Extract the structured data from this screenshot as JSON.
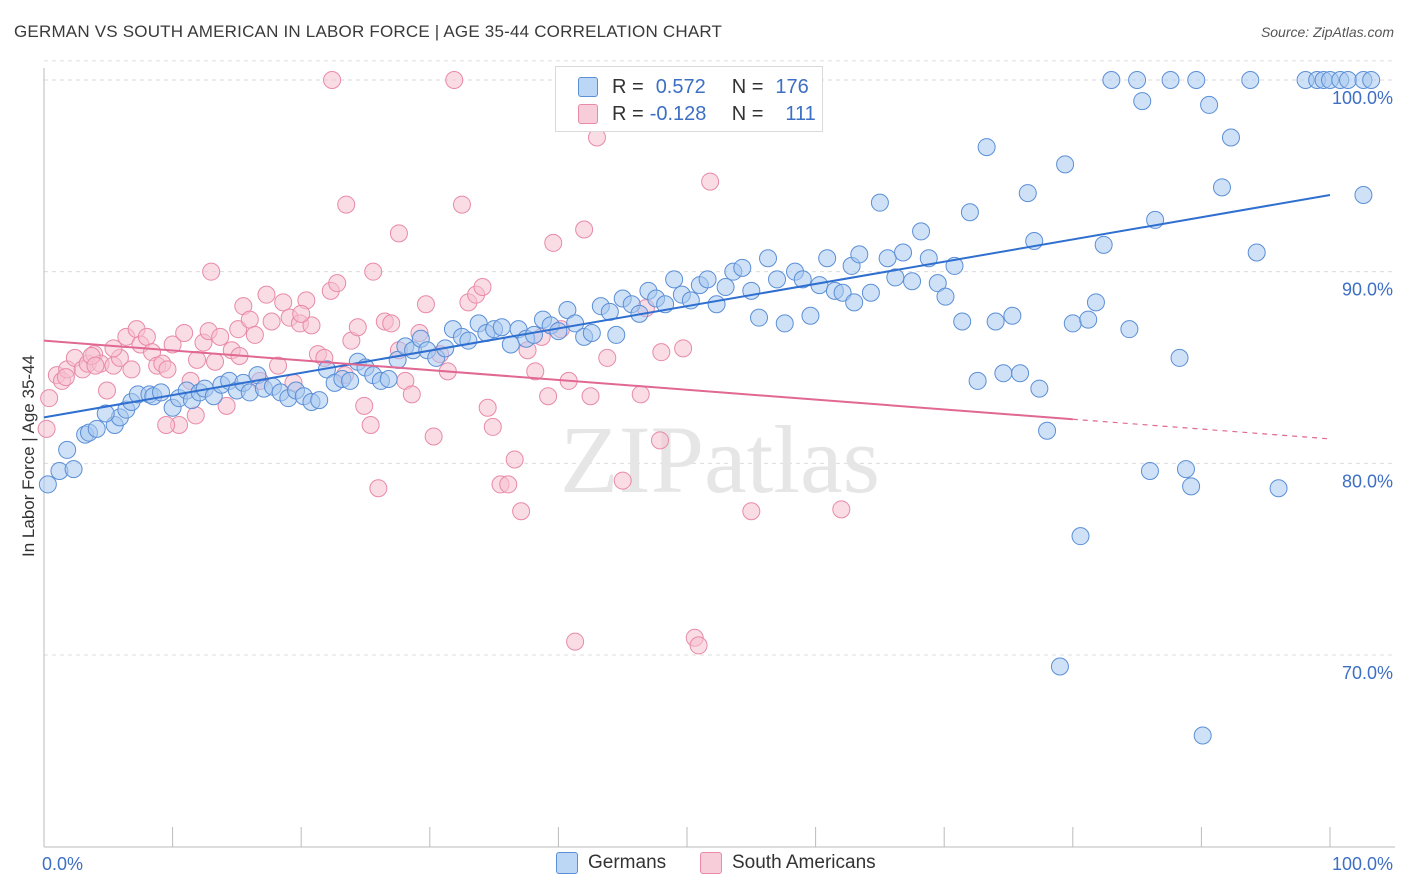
{
  "title": "GERMAN VS SOUTH AMERICAN IN LABOR FORCE | AGE 35-44 CORRELATION CHART",
  "source": "Source: ZipAtlas.com",
  "watermark": "ZIPatlas",
  "colors": {
    "blue_fill": "#a8c8f0",
    "blue_stroke": "#5b8fd6",
    "blue_line": "#2f6fcf",
    "pink_fill": "#f6bfd0",
    "pink_stroke": "#e88aa8",
    "pink_line": "#e06892",
    "axis_label": "#3d6fc4"
  },
  "legend": {
    "german": {
      "r_label": "R =",
      "r_value": "0.572",
      "n_label": "N =",
      "n_value": "176"
    },
    "south": {
      "r_label": "R =",
      "r_value": "-0.128",
      "n_label": "N =",
      "n_value": "111"
    }
  },
  "bottom_legend": {
    "german": "Germans",
    "south": "South Americans"
  },
  "chart_data": {
    "type": "scatter",
    "title": "GERMAN VS SOUTH AMERICAN IN LABOR FORCE | AGE 35-44 CORRELATION CHART",
    "xlabel": "",
    "ylabel": "In Labor Force | Age 35-44",
    "xlim": [
      0,
      100
    ],
    "ylim": [
      60,
      101.5
    ],
    "x_tick_labels": [
      "0.0%",
      "100.0%"
    ],
    "y_ticks": [
      70,
      80,
      90,
      100
    ],
    "y_tick_labels": [
      "70.0%",
      "80.0%",
      "90.0%",
      "100.0%"
    ],
    "grid": true,
    "series": [
      {
        "name": "Germans",
        "r": 0.572,
        "n": 176,
        "trend": {
          "x": [
            0,
            100
          ],
          "y": [
            82.4,
            94.0
          ]
        },
        "points": [
          [
            0.3,
            78.9
          ],
          [
            1.2,
            79.6
          ],
          [
            2.3,
            79.7
          ],
          [
            1.8,
            80.7
          ],
          [
            3.2,
            81.5
          ],
          [
            3.5,
            81.6
          ],
          [
            4.1,
            81.8
          ],
          [
            5.5,
            82.0
          ],
          [
            5.9,
            82.4
          ],
          [
            6.4,
            82.8
          ],
          [
            4.8,
            82.6
          ],
          [
            6.8,
            83.2
          ],
          [
            7.3,
            83.6
          ],
          [
            8.2,
            83.6
          ],
          [
            8.5,
            83.5
          ],
          [
            9.1,
            83.7
          ],
          [
            10.0,
            82.9
          ],
          [
            10.5,
            83.4
          ],
          [
            11.1,
            83.8
          ],
          [
            11.5,
            83.3
          ],
          [
            12.1,
            83.7
          ],
          [
            12.5,
            83.9
          ],
          [
            13.2,
            83.5
          ],
          [
            13.8,
            84.1
          ],
          [
            14.4,
            84.3
          ],
          [
            15.0,
            83.8
          ],
          [
            15.5,
            84.2
          ],
          [
            16.0,
            83.7
          ],
          [
            16.6,
            84.6
          ],
          [
            17.1,
            83.9
          ],
          [
            17.8,
            84.0
          ],
          [
            18.4,
            83.7
          ],
          [
            19.0,
            83.4
          ],
          [
            19.6,
            83.8
          ],
          [
            20.2,
            83.5
          ],
          [
            20.8,
            83.2
          ],
          [
            21.4,
            83.3
          ],
          [
            22.0,
            84.9
          ],
          [
            22.6,
            84.2
          ],
          [
            23.2,
            84.4
          ],
          [
            23.8,
            84.3
          ],
          [
            24.4,
            85.3
          ],
          [
            25.0,
            85.0
          ],
          [
            25.6,
            84.6
          ],
          [
            26.2,
            84.3
          ],
          [
            26.8,
            84.4
          ],
          [
            27.5,
            85.4
          ],
          [
            28.1,
            86.1
          ],
          [
            28.7,
            85.9
          ],
          [
            29.3,
            86.5
          ],
          [
            29.8,
            85.9
          ],
          [
            30.5,
            85.5
          ],
          [
            31.2,
            86.0
          ],
          [
            31.8,
            87.0
          ],
          [
            32.5,
            86.6
          ],
          [
            33.0,
            86.4
          ],
          [
            33.8,
            87.3
          ],
          [
            34.4,
            86.8
          ],
          [
            35.0,
            87.0
          ],
          [
            35.6,
            87.1
          ],
          [
            36.3,
            86.2
          ],
          [
            36.9,
            87.0
          ],
          [
            37.5,
            86.5
          ],
          [
            38.1,
            86.7
          ],
          [
            38.8,
            87.5
          ],
          [
            39.4,
            87.2
          ],
          [
            40.0,
            86.9
          ],
          [
            40.7,
            88.0
          ],
          [
            41.3,
            87.3
          ],
          [
            42.0,
            86.6
          ],
          [
            42.6,
            86.8
          ],
          [
            43.3,
            88.2
          ],
          [
            44.0,
            87.9
          ],
          [
            44.5,
            86.7
          ],
          [
            45.0,
            88.6
          ],
          [
            45.7,
            88.3
          ],
          [
            46.3,
            87.8
          ],
          [
            47.0,
            89.0
          ],
          [
            47.6,
            88.6
          ],
          [
            48.3,
            88.3
          ],
          [
            49.0,
            89.6
          ],
          [
            49.6,
            88.8
          ],
          [
            50.3,
            88.5
          ],
          [
            51.0,
            89.3
          ],
          [
            51.6,
            89.6
          ],
          [
            52.3,
            88.3
          ],
          [
            53.0,
            89.2
          ],
          [
            53.6,
            90.0
          ],
          [
            54.3,
            90.2
          ],
          [
            55.0,
            89.0
          ],
          [
            55.6,
            87.6
          ],
          [
            56.3,
            90.7
          ],
          [
            57.0,
            89.6
          ],
          [
            57.6,
            87.3
          ],
          [
            58.4,
            90.0
          ],
          [
            59.0,
            89.6
          ],
          [
            59.6,
            87.7
          ],
          [
            60.3,
            89.3
          ],
          [
            60.9,
            90.7
          ],
          [
            61.5,
            89.0
          ],
          [
            62.1,
            88.9
          ],
          [
            62.8,
            90.3
          ],
          [
            63.4,
            90.9
          ],
          [
            63.0,
            88.4
          ],
          [
            64.3,
            88.9
          ],
          [
            65.0,
            93.6
          ],
          [
            65.6,
            90.7
          ],
          [
            66.2,
            89.7
          ],
          [
            66.8,
            91.0
          ],
          [
            67.5,
            89.5
          ],
          [
            68.2,
            92.1
          ],
          [
            68.8,
            90.7
          ],
          [
            69.5,
            89.4
          ],
          [
            70.1,
            88.7
          ],
          [
            70.8,
            90.3
          ],
          [
            71.4,
            87.4
          ],
          [
            72.0,
            93.1
          ],
          [
            72.6,
            84.3
          ],
          [
            73.3,
            96.5
          ],
          [
            74.0,
            87.4
          ],
          [
            74.6,
            84.7
          ],
          [
            75.3,
            87.7
          ],
          [
            75.9,
            84.7
          ],
          [
            76.5,
            94.1
          ],
          [
            77.0,
            91.6
          ],
          [
            77.4,
            83.9
          ],
          [
            78.0,
            81.7
          ],
          [
            79.0,
            69.4
          ],
          [
            79.4,
            95.6
          ],
          [
            80.0,
            87.3
          ],
          [
            80.6,
            76.2
          ],
          [
            81.2,
            87.5
          ],
          [
            81.8,
            88.4
          ],
          [
            82.4,
            91.4
          ],
          [
            83.0,
            100.0
          ],
          [
            84.4,
            87.0
          ],
          [
            85.0,
            100.0
          ],
          [
            85.4,
            98.9
          ],
          [
            86.0,
            79.6
          ],
          [
            86.4,
            92.7
          ],
          [
            87.6,
            100.0
          ],
          [
            88.3,
            85.5
          ],
          [
            88.8,
            79.7
          ],
          [
            89.2,
            78.8
          ],
          [
            89.6,
            100.0
          ],
          [
            90.1,
            65.8
          ],
          [
            90.6,
            98.7
          ],
          [
            91.6,
            94.4
          ],
          [
            92.3,
            97.0
          ],
          [
            93.8,
            100.0
          ],
          [
            94.3,
            91.0
          ],
          [
            96.0,
            78.7
          ],
          [
            98.1,
            100.0
          ],
          [
            99.0,
            100.0
          ],
          [
            99.5,
            100.0
          ],
          [
            100.0,
            100.0
          ],
          [
            100.8,
            100.0
          ],
          [
            101.4,
            100.0
          ],
          [
            102.6,
            100.0
          ],
          [
            103.2,
            100.0
          ],
          [
            102.6,
            94.0
          ]
        ]
      },
      {
        "name": "South Americans",
        "r": -0.128,
        "n": 111,
        "trend": {
          "x": [
            0,
            80
          ],
          "y": [
            86.4,
            82.3
          ]
        },
        "points": [
          [
            0.2,
            81.8
          ],
          [
            0.4,
            83.4
          ],
          [
            1.0,
            84.6
          ],
          [
            1.4,
            84.3
          ],
          [
            1.8,
            84.9
          ],
          [
            2.4,
            85.5
          ],
          [
            3.0,
            84.9
          ],
          [
            3.4,
            85.2
          ],
          [
            3.9,
            85.7
          ],
          [
            4.4,
            85.2
          ],
          [
            4.9,
            83.8
          ],
          [
            5.4,
            85.1
          ],
          [
            5.9,
            85.5
          ],
          [
            6.4,
            86.6
          ],
          [
            6.8,
            84.9
          ],
          [
            7.2,
            87.0
          ],
          [
            7.5,
            86.2
          ],
          [
            8.0,
            86.6
          ],
          [
            8.4,
            85.8
          ],
          [
            8.8,
            85.1
          ],
          [
            9.2,
            85.2
          ],
          [
            9.6,
            84.9
          ],
          [
            10.0,
            86.2
          ],
          [
            10.5,
            82.0
          ],
          [
            10.9,
            86.8
          ],
          [
            11.4,
            84.3
          ],
          [
            11.9,
            85.4
          ],
          [
            12.4,
            86.3
          ],
          [
            12.8,
            86.9
          ],
          [
            13.3,
            85.3
          ],
          [
            13.7,
            86.6
          ],
          [
            14.2,
            83.0
          ],
          [
            14.6,
            85.9
          ],
          [
            15.1,
            87.0
          ],
          [
            15.5,
            88.2
          ],
          [
            16.0,
            87.5
          ],
          [
            16.4,
            86.7
          ],
          [
            16.8,
            84.3
          ],
          [
            17.3,
            88.8
          ],
          [
            17.7,
            87.4
          ],
          [
            18.2,
            85.1
          ],
          [
            18.6,
            88.4
          ],
          [
            19.1,
            87.6
          ],
          [
            19.4,
            84.2
          ],
          [
            19.9,
            87.3
          ],
          [
            20.4,
            88.5
          ],
          [
            20.8,
            87.2
          ],
          [
            21.3,
            85.7
          ],
          [
            21.8,
            85.5
          ],
          [
            22.3,
            89.0
          ],
          [
            22.8,
            89.4
          ],
          [
            23.4,
            84.6
          ],
          [
            23.9,
            86.4
          ],
          [
            24.4,
            87.1
          ],
          [
            24.9,
            83.0
          ],
          [
            25.4,
            82.0
          ],
          [
            26.0,
            78.7
          ],
          [
            26.5,
            87.4
          ],
          [
            27.0,
            87.3
          ],
          [
            27.6,
            85.9
          ],
          [
            28.1,
            84.3
          ],
          [
            28.6,
            83.6
          ],
          [
            29.2,
            86.8
          ],
          [
            29.7,
            88.3
          ],
          [
            30.3,
            81.4
          ],
          [
            30.8,
            85.7
          ],
          [
            31.4,
            84.8
          ],
          [
            31.9,
            100.0
          ],
          [
            32.5,
            93.5
          ],
          [
            33.0,
            88.4
          ],
          [
            33.6,
            88.8
          ],
          [
            34.1,
            89.2
          ],
          [
            34.5,
            82.9
          ],
          [
            34.9,
            81.9
          ],
          [
            35.5,
            78.9
          ],
          [
            36.1,
            78.9
          ],
          [
            36.6,
            80.2
          ],
          [
            37.1,
            77.5
          ],
          [
            37.6,
            85.9
          ],
          [
            38.2,
            84.8
          ],
          [
            38.7,
            86.6
          ],
          [
            39.2,
            83.5
          ],
          [
            39.6,
            91.5
          ],
          [
            40.2,
            87.0
          ],
          [
            40.8,
            84.3
          ],
          [
            41.3,
            70.7
          ],
          [
            42.0,
            92.2
          ],
          [
            42.5,
            83.5
          ],
          [
            43.0,
            97.0
          ],
          [
            43.5,
            100.0
          ],
          [
            45.0,
            79.1
          ],
          [
            46.4,
            83.6
          ],
          [
            46.8,
            88.1
          ],
          [
            47.9,
            81.2
          ],
          [
            49.7,
            86.0
          ],
          [
            50.6,
            70.9
          ],
          [
            50.9,
            70.5
          ],
          [
            51.8,
            94.7
          ],
          [
            55.0,
            77.5
          ],
          [
            62.0,
            77.6
          ],
          [
            48.0,
            85.8
          ],
          [
            43.8,
            85.5
          ],
          [
            22.4,
            100.0
          ],
          [
            23.5,
            93.5
          ],
          [
            20.0,
            87.8
          ],
          [
            11.8,
            82.5
          ],
          [
            13.0,
            90.0
          ],
          [
            9.5,
            82.0
          ],
          [
            25.6,
            90.0
          ],
          [
            27.6,
            92.0
          ],
          [
            15.2,
            85.6
          ],
          [
            5.4,
            86.0
          ],
          [
            1.7,
            84.5
          ],
          [
            3.7,
            85.6
          ],
          [
            4.0,
            85.1
          ]
        ]
      }
    ]
  }
}
